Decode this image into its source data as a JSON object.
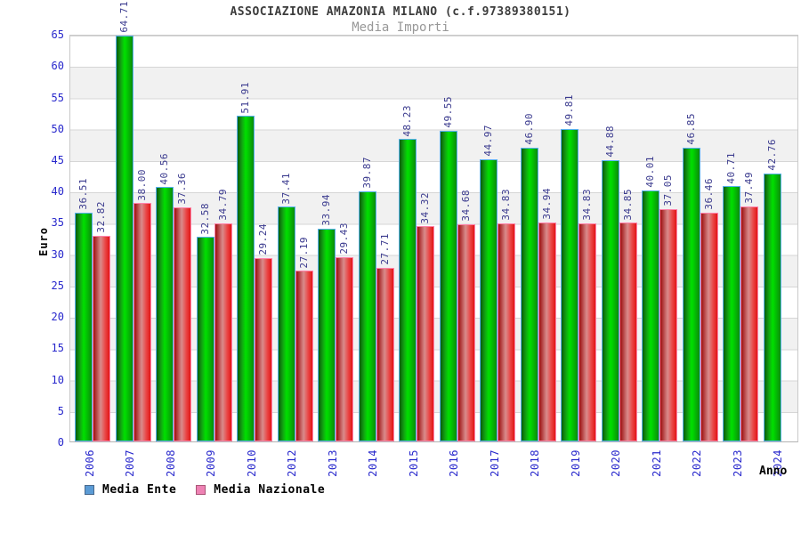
{
  "header": {
    "title": "ASSOCIAZIONE AMAZONIA MILANO (c.f.97389380151)",
    "subtitle": "Media Importi"
  },
  "legend": {
    "swatches": [
      {
        "name": "media-ente-swatch",
        "fill": "#5b9bd5",
        "border": "#47688c"
      },
      {
        "name": "media-nazionale-swatch",
        "fill": "#ee82b4",
        "border": "#aa5577"
      }
    ]
  },
  "colors": {
    "title": "#3c3c3c",
    "subtitle": "#989898",
    "axis_tick_label": "#2828cc",
    "value_label": "#3a3a8e",
    "band_gray": "#f1f1f1",
    "gridline": "#d6d6d6",
    "plot_border": "#c9c9c9",
    "bar_green_main": "#00e000",
    "bar_green_dark": "#0a5c0a",
    "bar_green_border": "#58b2f0",
    "bar_red_main": "#e01616",
    "bar_red_light": "#d98c8c",
    "bar_red_dark": "#9c0e0e",
    "bar_red_border": "#ff82aa"
  },
  "chart_data": {
    "type": "bar",
    "title": "ASSOCIAZIONE AMAZONIA MILANO (c.f.97389380151)",
    "subtitle": "Media Importi",
    "xlabel": "Anno",
    "ylabel": "Euro",
    "ylim": [
      0,
      65
    ],
    "ytick_step": 5,
    "grid": true,
    "legend_position": "bottom",
    "categories": [
      "2006",
      "2007",
      "2008",
      "2009",
      "2010",
      "2012",
      "2013",
      "2014",
      "2015",
      "2016",
      "2017",
      "2018",
      "2019",
      "2020",
      "2021",
      "2022",
      "2023",
      "2024"
    ],
    "series": [
      {
        "name": "Media Ente",
        "values": [
          36.51,
          64.71,
          40.56,
          32.58,
          51.91,
          37.41,
          33.94,
          39.87,
          48.23,
          49.55,
          44.97,
          46.9,
          49.81,
          44.88,
          40.01,
          46.85,
          40.71,
          42.76
        ],
        "value_labels": [
          "36.51",
          "64.71",
          "40.56",
          "32.58",
          "51.91",
          "37.41",
          "33.94",
          "39.87",
          "48.23",
          "49.55",
          "44.97",
          "46.90",
          "49.81",
          "44.88",
          "40.01",
          "46.85",
          "40.71",
          "42.76"
        ]
      },
      {
        "name": "Media Nazionale",
        "values": [
          32.82,
          38.0,
          37.36,
          34.79,
          29.24,
          27.19,
          29.43,
          27.71,
          34.32,
          34.68,
          34.83,
          34.94,
          34.83,
          34.85,
          37.05,
          36.46,
          37.49,
          null
        ],
        "value_labels": [
          "32.82",
          "38.00",
          "37.36",
          "34.79",
          "29.24",
          "27.19",
          "29.43",
          "27.71",
          "34.32",
          "34.68",
          "34.83",
          "34.94",
          "34.83",
          "34.85",
          "37.05",
          "36.46",
          "37.49",
          ""
        ]
      }
    ]
  }
}
